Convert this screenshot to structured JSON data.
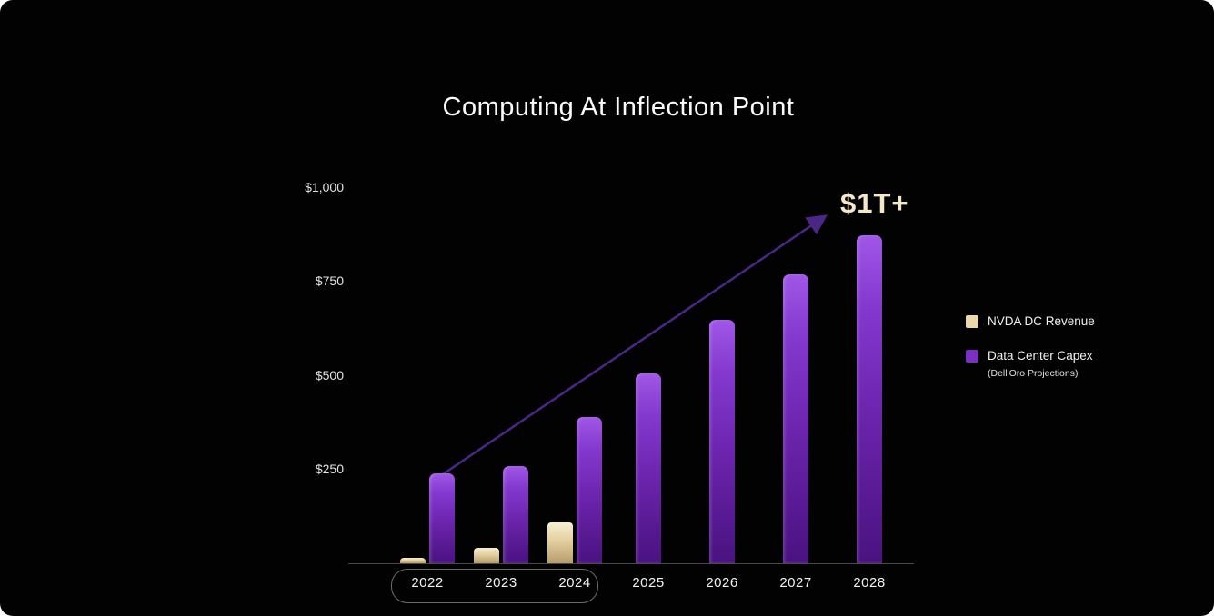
{
  "title": "Computing At Inflection Point",
  "annotation": "$1T+",
  "colors": {
    "background": "#020202",
    "nvda_bar": "#ead9ac",
    "capex_bar": "#7c2fc4",
    "arrow": "#4e2a8e",
    "annotation_text": "#f3e8ca"
  },
  "legend": [
    {
      "label": "NVDA DC Revenue",
      "sublabel": "",
      "color": "#ead9ac"
    },
    {
      "label": "Data Center Capex",
      "sublabel": "(Dell'Oro Projections)",
      "color": "#7c2fc4"
    }
  ],
  "chart_data": {
    "type": "bar",
    "title": "Computing At Inflection Point",
    "categories": [
      "2022",
      "2023",
      "2024",
      "2025",
      "2026",
      "2027",
      "2028"
    ],
    "series": [
      {
        "name": "NVDA DC Revenue",
        "color": "#ead9ac",
        "values": [
          15,
          42,
          110,
          null,
          null,
          null,
          null
        ]
      },
      {
        "name": "Data Center Capex (Dell'Oro Projections)",
        "color": "#7c2fc4",
        "values": [
          240,
          260,
          390,
          505,
          650,
          770,
          875
        ]
      }
    ],
    "y_ticks": [
      "$250",
      "$500",
      "$750",
      "$1,000"
    ],
    "y_tick_values": [
      250,
      500,
      750,
      1000
    ],
    "ylim": [
      0,
      1050
    ],
    "grid": false,
    "legend_position": "right",
    "annotation": {
      "text": "$1T+",
      "near_category": "2028"
    },
    "highlight_box_categories": [
      "2022",
      "2023",
      "2024"
    ]
  }
}
